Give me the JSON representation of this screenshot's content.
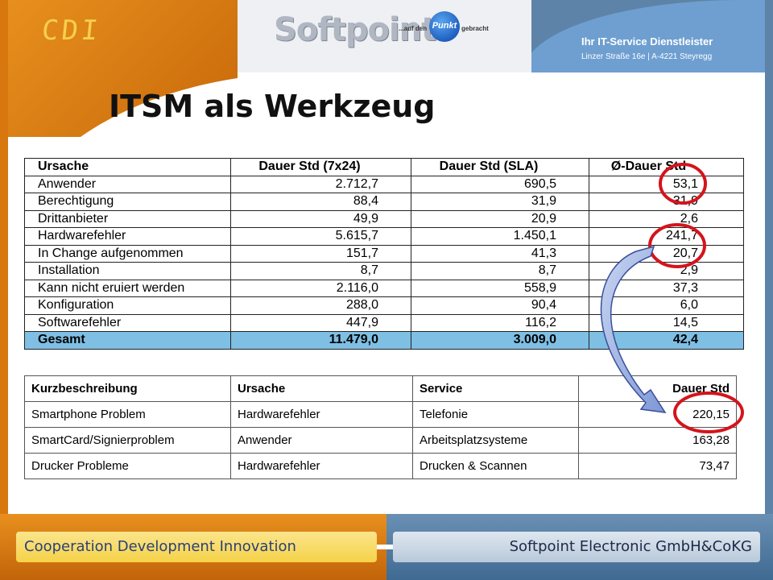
{
  "branding": {
    "cdi_logo": "CDI",
    "softpoint_logo": "Softpoint",
    "tagline_left": "...auf den",
    "tagline_badge": "Punkt",
    "tagline_right": "gebracht",
    "it_service_title": "Ihr IT-Service Dienstleister",
    "it_service_address": "Linzer Straße 16e  |  A-4221 Steyregg"
  },
  "page_title": "ITSM als Werkzeug",
  "table1": {
    "headers": [
      "Ursache",
      "Dauer Std (7x24)",
      "Dauer Std (SLA)",
      "Ø-Dauer Std"
    ],
    "rows": [
      [
        "Anwender",
        "2.712,7",
        "690,5",
        "53,1"
      ],
      [
        "Berechtigung",
        "88,4",
        "31,9",
        "31,9"
      ],
      [
        "Drittanbieter",
        "49,9",
        "20,9",
        "2,6"
      ],
      [
        "Hardwarefehler",
        "5.615,7",
        "1.450,1",
        "241,7"
      ],
      [
        "In Change aufgenommen",
        "151,7",
        "41,3",
        "20,7"
      ],
      [
        "Installation",
        "8,7",
        "8,7",
        "2,9"
      ],
      [
        "Kann nicht eruiert werden",
        "2.116,0",
        "558,9",
        "37,3"
      ],
      [
        "Konfiguration",
        "288,0",
        "90,4",
        "6,0"
      ],
      [
        "Softwarefehler",
        "447,9",
        "116,2",
        "14,5"
      ]
    ],
    "total": [
      "Gesamt",
      "11.479,0",
      "3.009,0",
      "42,4"
    ]
  },
  "table2": {
    "headers": [
      "Kurzbeschreibung",
      "Ursache",
      "Service",
      "Dauer Std"
    ],
    "rows": [
      [
        "Smartphone Problem",
        "Hardwarefehler",
        "Telefonie",
        "220,15"
      ],
      [
        "SmartCard/Signierproblem",
        "Anwender",
        "Arbeitsplatzsysteme",
        "163,28"
      ],
      [
        "Drucker Probleme",
        "Hardwarefehler",
        "Drucken & Scannen",
        "73,47"
      ]
    ]
  },
  "footer": {
    "left": "Cooperation Development Innovation",
    "right": "Softpoint Electronic GmbH&CoKG"
  },
  "colors": {
    "orange": "#d9770f",
    "blue": "#5d84a8",
    "total_row": "#7fbfe4",
    "highlight_circle": "#d4141c"
  }
}
